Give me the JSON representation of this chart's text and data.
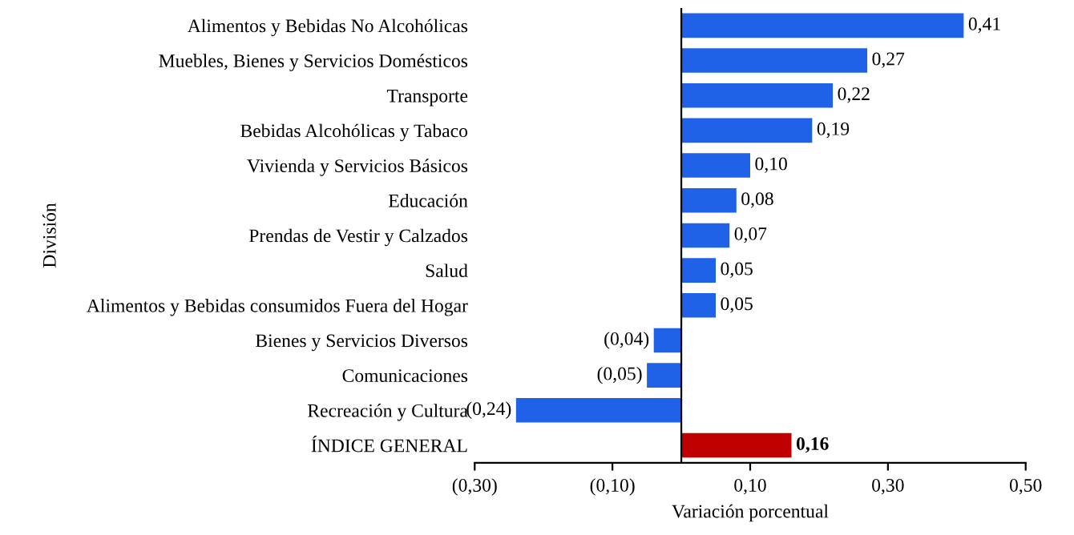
{
  "chart_data": {
    "type": "bar",
    "orientation": "horizontal",
    "xlabel": "Variación porcentual",
    "ylabel": "División",
    "categories": [
      "Alimentos y Bebidas No Alcohólicas",
      "Muebles, Bienes y Servicios Domésticos",
      "Transporte",
      "Bebidas Alcohólicas y Tabaco",
      "Vivienda y Servicios Básicos",
      "Educación",
      "Prendas de Vestir y Calzados",
      "Salud",
      "Alimentos y Bebidas consumidos Fuera del Hogar",
      "Bienes y Servicios Diversos",
      "Comunicaciones",
      "Recreación y Cultura",
      "ÍNDICE GENERAL"
    ],
    "values": [
      0.41,
      0.27,
      0.22,
      0.19,
      0.1,
      0.08,
      0.07,
      0.05,
      0.05,
      -0.04,
      -0.05,
      -0.24,
      0.16
    ],
    "value_labels": [
      "0,41",
      "0,27",
      "0,22",
      "0,19",
      "0,10",
      "0,08",
      "0,07",
      "0,05",
      "0,05",
      "(0,04)",
      "(0,05)",
      "(0,24)",
      "0,16"
    ],
    "colors": [
      "#1f62e8",
      "#1f62e8",
      "#1f62e8",
      "#1f62e8",
      "#1f62e8",
      "#1f62e8",
      "#1f62e8",
      "#1f62e8",
      "#1f62e8",
      "#1f62e8",
      "#1f62e8",
      "#1f62e8",
      "#c00000"
    ],
    "xlim": [
      -0.3,
      0.5
    ],
    "xticks": [
      {
        "value": -0.3,
        "label": "(0,30)"
      },
      {
        "value": -0.1,
        "label": "(0,10)"
      },
      {
        "value": 0.1,
        "label": "0,10"
      },
      {
        "value": 0.3,
        "label": "0,30"
      },
      {
        "value": 0.5,
        "label": "0,50"
      }
    ],
    "grid": false,
    "legend": false
  }
}
